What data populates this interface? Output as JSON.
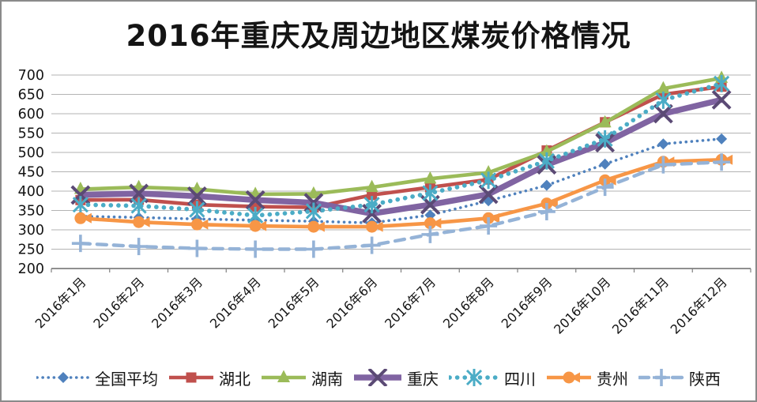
{
  "chart_data": {
    "type": "line",
    "title": "2016年重庆及周边地区煤炭价格情况",
    "categories": [
      "2016年1月",
      "2016年2月",
      "2016年3月",
      "2016年4月",
      "2016年5月",
      "2016年6月",
      "2016年7月",
      "2016年8月",
      "2016年9月",
      "2016年10月",
      "2016年11月",
      "2016年12月"
    ],
    "xlabel": "",
    "ylabel": "",
    "ylim": [
      200,
      700
    ],
    "ytick_step": 50,
    "grid": "horizontal",
    "legend_position": "bottom",
    "axis_color": "#808080",
    "gridline_color": "#b3b3b3",
    "text_color": "#141414",
    "series": [
      {
        "name": "全国平均",
        "color": "#4f81bd",
        "line": "dotted",
        "marker": "diamond",
        "values": [
          335,
          332,
          328,
          325,
          322,
          318,
          338,
          375,
          415,
          470,
          522,
          535
        ]
      },
      {
        "name": "湖北",
        "color": "#c0504d",
        "line": "solid",
        "marker": "square",
        "values": [
          377,
          378,
          365,
          360,
          358,
          390,
          410,
          430,
          505,
          578,
          650,
          670
        ]
      },
      {
        "name": "湖南",
        "color": "#9bbb59",
        "line": "solid",
        "marker": "triangle",
        "values": [
          405,
          410,
          405,
          392,
          393,
          410,
          432,
          448,
          502,
          577,
          665,
          692
        ]
      },
      {
        "name": "重庆",
        "color": "#8064a2",
        "marker_color": "#5b4a75",
        "line": "solid-thick",
        "marker": "x",
        "values": [
          390,
          394,
          387,
          377,
          370,
          342,
          365,
          392,
          468,
          525,
          600,
          636
        ]
      },
      {
        "name": "四川",
        "color": "#4bacc6",
        "line": "round-dot",
        "marker": "asterisk",
        "values": [
          365,
          362,
          352,
          337,
          348,
          365,
          395,
          428,
          478,
          535,
          635,
          678
        ]
      },
      {
        "name": "贵州",
        "color": "#f79646",
        "line": "solid",
        "marker": "circle-arrow",
        "values": [
          330,
          320,
          314,
          310,
          308,
          308,
          317,
          330,
          368,
          428,
          476,
          481
        ]
      },
      {
        "name": "陕西",
        "color": "#95b3d7",
        "line": "dashed",
        "marker": "plus",
        "values": [
          265,
          257,
          252,
          250,
          250,
          260,
          288,
          310,
          347,
          410,
          468,
          475
        ]
      }
    ]
  }
}
